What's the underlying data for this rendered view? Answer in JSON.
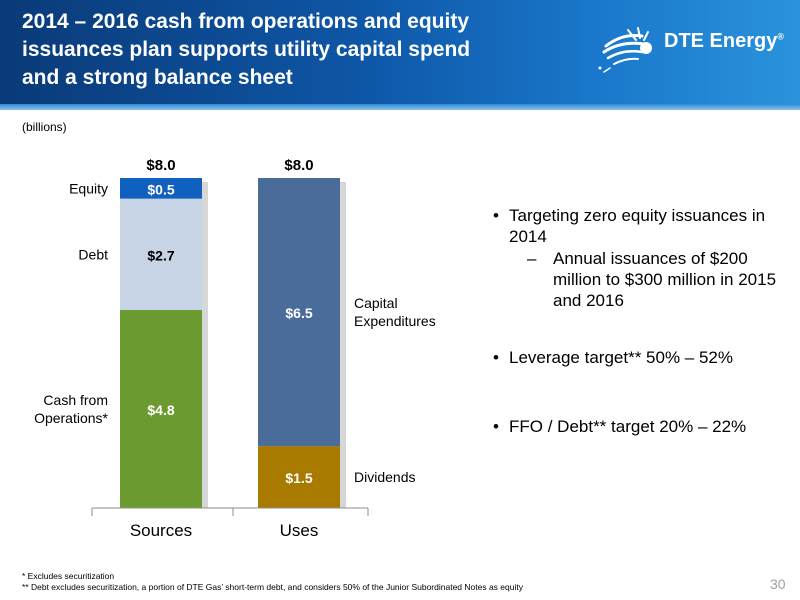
{
  "header": {
    "title_lines": [
      "2014 – 2016 cash from operations and equity",
      "issuances plan supports utility capital spend",
      "and a strong balance sheet"
    ],
    "logo_text": "DTE Energy",
    "logo_mark": "®"
  },
  "chart_units": "(billions)",
  "chart_data": {
    "type": "bar",
    "stacked": true,
    "categories": [
      "Sources",
      "Uses"
    ],
    "totals": [
      "$8.0",
      "$8.0"
    ],
    "ylim": [
      0,
      8.0
    ],
    "grid": false,
    "segments": [
      {
        "category": "Sources",
        "label": "Cash from Operations*",
        "value": 4.8,
        "value_label": "$4.8",
        "color": "#6b9a30",
        "text_color": "#ffffff"
      },
      {
        "category": "Sources",
        "label": "Debt",
        "value": 2.7,
        "value_label": "$2.7",
        "color": "#c7d4e5",
        "text_color": "#000000"
      },
      {
        "category": "Sources",
        "label": "Equity",
        "value": 0.5,
        "value_label": "$0.5",
        "color": "#1060c0",
        "text_color": "#ffffff"
      },
      {
        "category": "Uses",
        "label": "Dividends",
        "value": 1.5,
        "value_label": "$1.5",
        "color": "#a87b00",
        "text_color": "#ffffff"
      },
      {
        "category": "Uses",
        "label": "Capital Expenditures",
        "value": 6.5,
        "value_label": "$6.5",
        "color": "#4a6c9b",
        "text_color": "#ffffff"
      }
    ]
  },
  "bullets": [
    {
      "text": "Targeting zero equity issuances in 2014",
      "sub": [
        "Annual issuances of $200 million to $300 million in 2015 and 2016"
      ]
    },
    {
      "text": "Leverage target** 50% – 52%",
      "sub": []
    },
    {
      "text": "FFO / Debt** target 20% – 22%",
      "sub": []
    }
  ],
  "footnotes": [
    "* Excludes securitization",
    "** Debt excludes securitization, a portion of DTE Gas’ short-term debt, and considers 50% of the Junior Subordinated Notes as equity"
  ],
  "page_number": "30",
  "colors": {
    "header_dark": "#0a3a78",
    "header_light": "#2a93dc",
    "bar_shadow": "#bcbcbc",
    "axis": "#8c8c8c"
  }
}
